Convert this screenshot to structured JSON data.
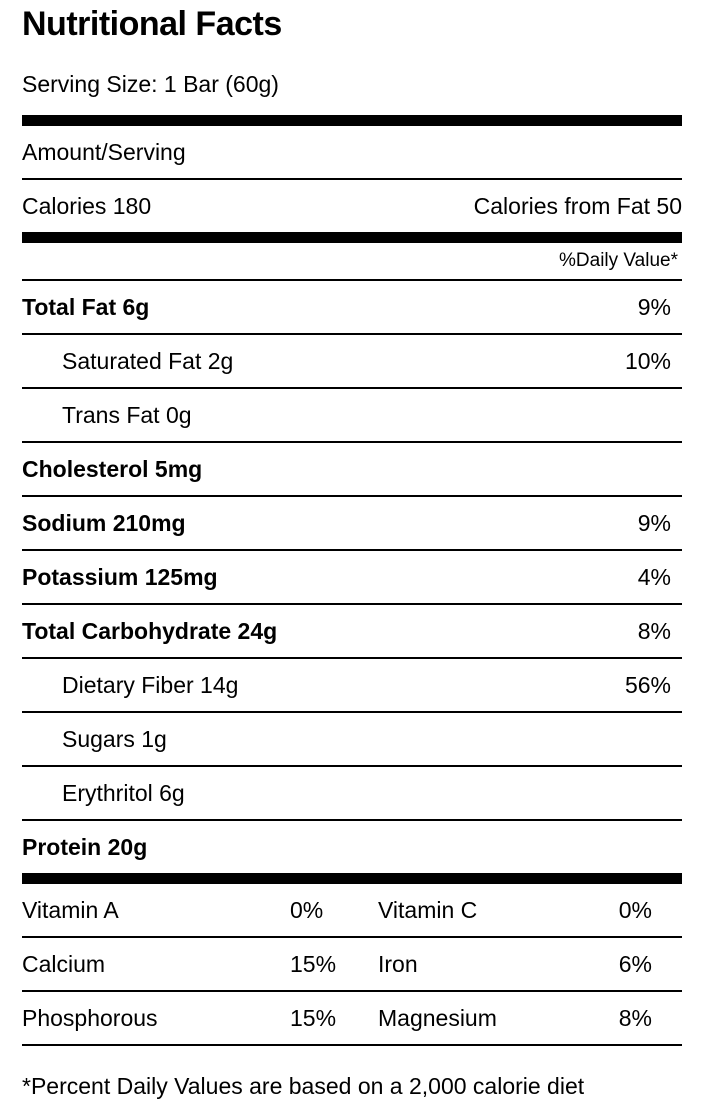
{
  "label": {
    "title": "Nutritional Facts",
    "serving_size": "Serving Size: 1 Bar (60g)",
    "amount_per_serving_header": "Amount/Serving",
    "calories": "Calories 180",
    "calories_from_fat": "Calories from Fat 50",
    "daily_value_header": "%Daily Value*",
    "footnote": "*Percent Daily Values are based on a 2,000 calorie diet"
  },
  "nutrients": [
    {
      "name": "Total Fat 6g",
      "daily_value": "9%"
    },
    {
      "name": "Saturated Fat 2g",
      "daily_value": "10%"
    },
    {
      "name": "Trans Fat 0g",
      "daily_value": ""
    },
    {
      "name": "Cholesterol 5mg",
      "daily_value": ""
    },
    {
      "name": "Sodium 210mg",
      "daily_value": "9%"
    },
    {
      "name": "Potassium 125mg",
      "daily_value": "4%"
    },
    {
      "name": "Total Carbohydrate 24g",
      "daily_value": "8%"
    },
    {
      "name": "Dietary Fiber 14g",
      "daily_value": "56%"
    },
    {
      "name": "Sugars 1g",
      "daily_value": ""
    },
    {
      "name": "Erythritol 6g",
      "daily_value": ""
    },
    {
      "name": "Protein 20g",
      "daily_value": ""
    }
  ],
  "minerals": [
    {
      "label1": "Vitamin A",
      "value1": "0%",
      "label2": "Vitamin C",
      "value2": "0%"
    },
    {
      "label1": "Calcium",
      "value1": "15%",
      "label2": "Iron",
      "value2": "6%"
    },
    {
      "label1": "Phosphorous",
      "value1": "15%",
      "label2": "Magnesium",
      "value2": "8%"
    }
  ],
  "colors": {
    "text": "#000000",
    "rule": "#000000",
    "background": "#ffffff"
  }
}
